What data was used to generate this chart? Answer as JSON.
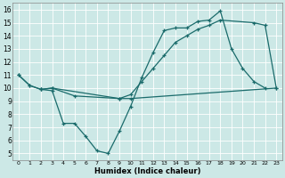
{
  "xlabel": "Humidex (Indice chaleur)",
  "xlim": [
    -0.5,
    23.5
  ],
  "ylim": [
    4.5,
    16.5
  ],
  "yticks": [
    5,
    6,
    7,
    8,
    9,
    10,
    11,
    12,
    13,
    14,
    15,
    16
  ],
  "xticks": [
    0,
    1,
    2,
    3,
    4,
    5,
    6,
    7,
    8,
    9,
    10,
    11,
    12,
    13,
    14,
    15,
    16,
    17,
    18,
    19,
    20,
    21,
    22,
    23
  ],
  "background_color": "#cce8e6",
  "line_color": "#1a6b6b",
  "grid_color": "#ffffff",
  "line1_x": [
    0,
    1,
    2,
    3,
    4,
    5,
    6,
    7,
    8,
    9,
    10,
    11,
    12,
    13,
    14,
    15,
    16,
    17,
    18,
    19,
    20,
    21,
    22
  ],
  "line1_y": [
    11.0,
    10.2,
    9.9,
    9.8,
    7.3,
    7.3,
    6.3,
    5.2,
    5.0,
    6.7,
    8.6,
    10.8,
    12.7,
    14.4,
    14.6,
    14.6,
    15.1,
    15.2,
    15.9,
    13.0,
    11.5,
    10.5,
    10.0
  ],
  "line2_x": [
    0,
    1,
    2,
    3,
    5,
    9,
    10,
    23
  ],
  "line2_y": [
    11.0,
    10.2,
    9.9,
    10.0,
    9.4,
    9.2,
    9.2,
    10.0
  ],
  "line3_x": [
    2,
    3,
    9,
    10,
    11,
    12,
    13,
    14,
    15,
    16,
    17,
    18,
    21,
    22,
    23
  ],
  "line3_y": [
    9.9,
    10.0,
    9.2,
    9.5,
    10.5,
    11.5,
    12.5,
    13.5,
    14.0,
    14.5,
    14.8,
    15.2,
    15.0,
    14.8,
    10.0
  ]
}
